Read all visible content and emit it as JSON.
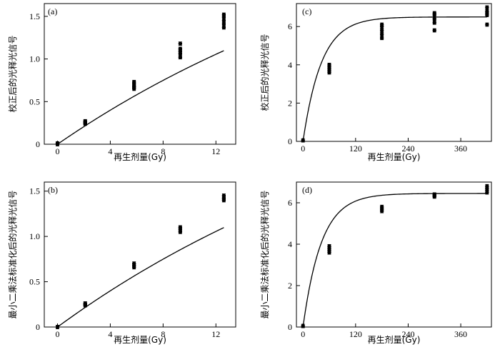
{
  "chart_data": [
    {
      "panel": "(a)",
      "type": "scatter",
      "xlabel": "再生剂量(Gy)",
      "ylabel": "校正后的光释光信号",
      "xlim": [
        -1,
        13.5
      ],
      "ylim": [
        0,
        1.65
      ],
      "xticks": [
        0,
        4,
        8,
        12
      ],
      "yticks": [
        0,
        0.5,
        1.0,
        1.5
      ],
      "ytick_labels": [
        "0",
        "0.5",
        "1.0",
        "1.5"
      ],
      "curve": {
        "kind": "saturating-exponential",
        "k": 3.2,
        "D0": 30
      },
      "points": [
        [
          0,
          0.0
        ],
        [
          0,
          0.01
        ],
        [
          2.1,
          0.24
        ],
        [
          2.1,
          0.26
        ],
        [
          2.1,
          0.27
        ],
        [
          2.1,
          0.25
        ],
        [
          5.8,
          0.65
        ],
        [
          5.8,
          0.68
        ],
        [
          5.8,
          0.71
        ],
        [
          5.8,
          0.73
        ],
        [
          5.8,
          0.67
        ],
        [
          9.3,
          1.02
        ],
        [
          9.3,
          1.06
        ],
        [
          9.3,
          1.09
        ],
        [
          9.3,
          1.12
        ],
        [
          9.3,
          1.18
        ],
        [
          12.6,
          1.37
        ],
        [
          12.6,
          1.41
        ],
        [
          12.6,
          1.45
        ],
        [
          12.6,
          1.49
        ],
        [
          12.6,
          1.52
        ]
      ]
    },
    {
      "panel": "(b)",
      "type": "scatter",
      "xlabel": "再生剂量(Gy)",
      "ylabel": "最小二乘法标准化后的光释光信号",
      "xlim": [
        -1,
        13.5
      ],
      "ylim": [
        0,
        1.6
      ],
      "xticks": [
        0,
        4,
        8,
        12
      ],
      "yticks": [
        0,
        0.5,
        1.0,
        1.5
      ],
      "ytick_labels": [
        "0",
        "0.5",
        "1.0",
        "1.5"
      ],
      "curve": {
        "kind": "saturating-exponential",
        "k": 3.2,
        "D0": 30
      },
      "points": [
        [
          0,
          0.0
        ],
        [
          2.1,
          0.24
        ],
        [
          2.1,
          0.25
        ],
        [
          2.1,
          0.26
        ],
        [
          5.8,
          0.66
        ],
        [
          5.8,
          0.68
        ],
        [
          5.8,
          0.7
        ],
        [
          9.3,
          1.05
        ],
        [
          9.3,
          1.08
        ],
        [
          9.3,
          1.1
        ],
        [
          12.6,
          1.4
        ],
        [
          12.6,
          1.42
        ],
        [
          12.6,
          1.45
        ]
      ]
    },
    {
      "panel": "(c)",
      "type": "scatter",
      "xlabel": "再生剂量(Gy)",
      "ylabel": "校正后的光释光信号",
      "xlim": [
        -15,
        430
      ],
      "ylim": [
        0,
        7.2
      ],
      "xticks": [
        0,
        120,
        240,
        360
      ],
      "yticks": [
        0,
        2,
        4,
        6
      ],
      "ytick_labels": [
        "0",
        "2",
        "4",
        "6"
      ],
      "curve": {
        "kind": "saturating-exponential",
        "k": 6.5,
        "D0": 42
      },
      "points": [
        [
          0,
          0.05
        ],
        [
          60,
          3.6
        ],
        [
          60,
          3.7
        ],
        [
          60,
          3.8
        ],
        [
          60,
          3.9
        ],
        [
          60,
          4.0
        ],
        [
          180,
          5.4
        ],
        [
          180,
          5.6
        ],
        [
          180,
          5.8
        ],
        [
          180,
          6.0
        ],
        [
          180,
          6.1
        ],
        [
          300,
          5.8
        ],
        [
          300,
          6.2
        ],
        [
          300,
          6.4
        ],
        [
          300,
          6.6
        ],
        [
          300,
          6.7
        ],
        [
          420,
          6.1
        ],
        [
          420,
          6.6
        ],
        [
          420,
          6.8
        ],
        [
          420,
          7.0
        ],
        [
          420,
          6.7
        ]
      ]
    },
    {
      "panel": "(d)",
      "type": "scatter",
      "xlabel": "再生剂量(Gy)",
      "ylabel": "最小二乘法标准化后的光释光信号",
      "xlim": [
        -15,
        430
      ],
      "ylim": [
        0,
        7.0
      ],
      "xticks": [
        0,
        120,
        240,
        360
      ],
      "yticks": [
        0,
        2,
        4,
        6
      ],
      "ytick_labels": [
        "0",
        "2",
        "4",
        "6"
      ],
      "curve": {
        "kind": "saturating-exponential",
        "k": 6.45,
        "D0": 42
      },
      "points": [
        [
          0,
          0.05
        ],
        [
          60,
          3.6
        ],
        [
          60,
          3.7
        ],
        [
          60,
          3.8
        ],
        [
          60,
          3.9
        ],
        [
          180,
          5.6
        ],
        [
          180,
          5.7
        ],
        [
          180,
          5.8
        ],
        [
          300,
          6.3
        ],
        [
          300,
          6.4
        ],
        [
          300,
          6.35
        ],
        [
          420,
          6.5
        ],
        [
          420,
          6.6
        ],
        [
          420,
          6.7
        ],
        [
          420,
          6.8
        ]
      ]
    }
  ]
}
